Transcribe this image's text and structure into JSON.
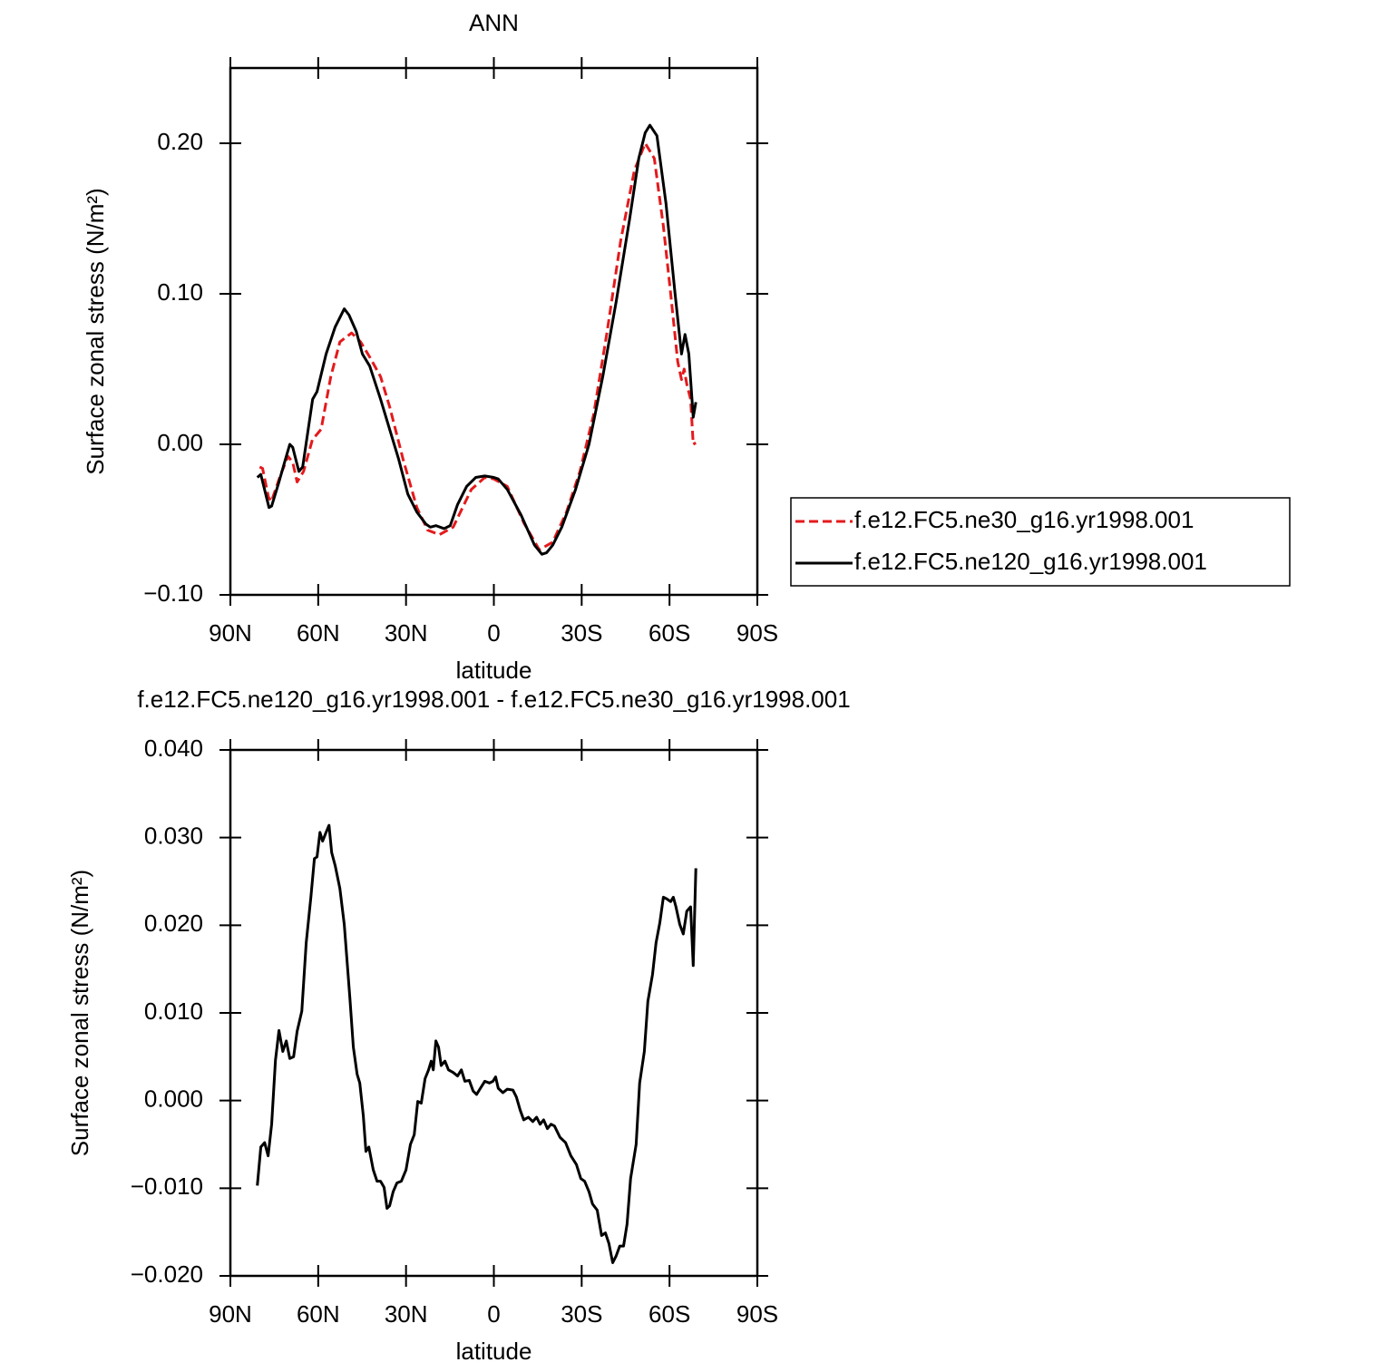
{
  "chart_data": [
    {
      "type": "line",
      "title": "ANN",
      "xlabel": "latitude",
      "ylabel": "Surface zonal stress (N/m²)",
      "xlim": [
        90,
        -90
      ],
      "xticks": [
        {
          "value": 90,
          "label": "90N"
        },
        {
          "value": 60,
          "label": "60N"
        },
        {
          "value": 30,
          "label": "30N"
        },
        0,
        {
          "value": -30,
          "label": "30S"
        },
        {
          "value": -60,
          "label": "60S"
        },
        {
          "value": -90,
          "label": "90S"
        }
      ],
      "ylim": [
        -0.1,
        0.25
      ],
      "yticks": [
        {
          "value": -0.1,
          "label": "−0.10"
        },
        {
          "value": 0.0,
          "label": "0.00"
        },
        {
          "value": 0.1,
          "label": "0.10"
        },
        {
          "value": 0.2,
          "label": "0.20"
        }
      ],
      "legend": "right",
      "series": [
        {
          "name": "f.e12.FC5.ne30_g16.yr1998.001",
          "color": "#e41a1c",
          "line_style": "dashed",
          "x": [
            80,
            79,
            77,
            76,
            72.8,
            70.3,
            68.7,
            67.2,
            65,
            62,
            59,
            55.7,
            52.6,
            48.6,
            45.5,
            42.4,
            38.7,
            35.6,
            31,
            26.3,
            22.6,
            18.6,
            13.9,
            7.7,
            3.1,
            0,
            -4.6,
            -10.2,
            -15.5,
            -20.1,
            -24.8,
            -29.4,
            -34.1,
            -38.7,
            -43.3,
            -48,
            -51.7,
            -54.8,
            -57.9,
            -60.4,
            -62.8,
            -64.1,
            -65,
            -65.9,
            -67.2,
            -68.1,
            -69
          ],
          "values": [
            -0.015,
            -0.016,
            -0.035,
            -0.038,
            -0.02,
            -0.008,
            -0.012,
            -0.025,
            -0.018,
            0.003,
            0.01,
            0.045,
            0.068,
            0.074,
            0.068,
            0.058,
            0.045,
            0.025,
            -0.01,
            -0.042,
            -0.057,
            -0.06,
            -0.055,
            -0.03,
            -0.022,
            -0.023,
            -0.028,
            -0.052,
            -0.07,
            -0.065,
            -0.045,
            -0.018,
            0.02,
            0.075,
            0.135,
            0.182,
            0.2,
            0.19,
            0.145,
            0.1,
            0.055,
            0.043,
            0.05,
            0.04,
            0.03,
            0.0,
            0.001
          ]
        },
        {
          "name": "f.e12.FC5.ne120_g16.yr1998.001",
          "color": "#000000",
          "line_style": "solid",
          "x": [
            80.8,
            79.6,
            76.8,
            75.9,
            73.4,
            71.5,
            69.7,
            68.7,
            66.6,
            65.3,
            61.9,
            60.4,
            57.3,
            54.2,
            51.1,
            49.5,
            47,
            44.9,
            42.4,
            38.7,
            35.6,
            32.5,
            29.4,
            26.3,
            23.2,
            21.7,
            19.8,
            17,
            14.9,
            12.4,
            9.3,
            6.2,
            3.1,
            0,
            -1.5,
            -4.6,
            -9.3,
            -13.9,
            -16.4,
            -18,
            -20.1,
            -23.2,
            -27.9,
            -32.5,
            -37.2,
            -41.8,
            -46.4,
            -49.5,
            -51.7,
            -53.3,
            -55.7,
            -58.8,
            -61.9,
            -64.1,
            -65.3,
            -66.6,
            -68.1,
            -69
          ],
          "values": [
            -0.022,
            -0.02,
            -0.042,
            -0.041,
            -0.025,
            -0.012,
            0.0,
            -0.002,
            -0.018,
            -0.015,
            0.03,
            0.035,
            0.06,
            0.078,
            0.09,
            0.086,
            0.075,
            0.06,
            0.052,
            0.03,
            0.01,
            -0.01,
            -0.033,
            -0.045,
            -0.053,
            -0.055,
            -0.054,
            -0.056,
            -0.054,
            -0.04,
            -0.028,
            -0.022,
            -0.021,
            -0.022,
            -0.023,
            -0.03,
            -0.047,
            -0.067,
            -0.073,
            -0.072,
            -0.067,
            -0.055,
            -0.03,
            0.0,
            0.045,
            0.095,
            0.15,
            0.19,
            0.207,
            0.212,
            0.205,
            0.16,
            0.1,
            0.06,
            0.073,
            0.06,
            0.018,
            0.028
          ]
        }
      ]
    },
    {
      "type": "line",
      "title": "f.e12.FC5.ne120_g16.yr1998.001 - f.e12.FC5.ne30_g16.yr1998.001",
      "xlabel": "latitude",
      "ylabel": "Surface zonal stress (N/m²)",
      "xlim": [
        90,
        -90
      ],
      "xticks": [
        {
          "value": 90,
          "label": "90N"
        },
        {
          "value": 60,
          "label": "60N"
        },
        {
          "value": 30,
          "label": "30N"
        },
        0,
        {
          "value": -30,
          "label": "30S"
        },
        {
          "value": -60,
          "label": "60S"
        },
        {
          "value": -90,
          "label": "90S"
        }
      ],
      "ylim": [
        -0.02,
        0.04
      ],
      "yticks": [
        {
          "value": -0.02,
          "label": "−0.020"
        },
        {
          "value": -0.01,
          "label": "−0.010"
        },
        {
          "value": 0.0,
          "label": "0.000"
        },
        {
          "value": 0.01,
          "label": "0.010"
        },
        {
          "value": 0.02,
          "label": "0.020"
        },
        {
          "value": 0.03,
          "label": "0.030"
        },
        {
          "value": 0.04,
          "label": "0.040"
        }
      ],
      "series": [
        {
          "color": "#000000",
          "line_style": "solid",
          "x": [
            80.8,
            79.6,
            78.3,
            77.1,
            75.9,
            74.6,
            73.4,
            72.1,
            70.9,
            69.7,
            68.4,
            67.2,
            65.6,
            64.1,
            62.5,
            61.3,
            60.4,
            59.4,
            58.5,
            57.3,
            56.3,
            55.4,
            54.2,
            52.6,
            51.1,
            49.2,
            48.0,
            46.7,
            45.8,
            44.6,
            43.7,
            42.7,
            41.2,
            39.9,
            38.7,
            37.5,
            36.5,
            35.6,
            34.4,
            33.1,
            31.6,
            30.0,
            28.5,
            27.2,
            26.0,
            24.8,
            23.5,
            22.3,
            21.4,
            20.7,
            19.8,
            18.9,
            18.0,
            16.7,
            15.5,
            13.9,
            12.4,
            11.1,
            9.9,
            8.4,
            7.1,
            5.9,
            4.6,
            3.1,
            1.5,
            0.3,
            -0.6,
            -1.5,
            -3.1,
            -4.6,
            -6.5,
            -7.7,
            -9.0,
            -10.2,
            -11.8,
            -13.3,
            -14.6,
            -15.8,
            -17.0,
            -18.3,
            -19.5,
            -20.7,
            -22.6,
            -24.5,
            -26.3,
            -28.2,
            -29.7,
            -31.0,
            -32.5,
            -33.7,
            -35.3,
            -36.8,
            -38.1,
            -39.3,
            -40.6,
            -41.8,
            -43.0,
            -44.3,
            -45.5,
            -46.7,
            -48.6,
            -49.8,
            -51.4,
            -52.6,
            -54.2,
            -55.4,
            -56.7,
            -57.9,
            -59.1,
            -60.4,
            -61.3,
            -62.2,
            -63.5,
            -64.7,
            -65.9,
            -67.2,
            -68.1,
            -69.0
          ],
          "values": [
            -0.0097,
            -0.0053,
            -0.0048,
            -0.0063,
            -0.0027,
            0.0046,
            0.008,
            0.0056,
            0.0068,
            0.0048,
            0.005,
            0.0079,
            0.0102,
            0.018,
            0.0232,
            0.0276,
            0.0278,
            0.0306,
            0.0296,
            0.0306,
            0.0314,
            0.0283,
            0.0268,
            0.0242,
            0.0201,
            0.0118,
            0.0061,
            0.003,
            0.002,
            -0.0017,
            -0.0058,
            -0.0053,
            -0.0079,
            -0.0092,
            -0.0092,
            -0.0099,
            -0.0123,
            -0.012,
            -0.0104,
            -0.0094,
            -0.0092,
            -0.0079,
            -0.005,
            -0.0039,
            -0.0001,
            -0.0003,
            0.0025,
            0.0035,
            0.0045,
            0.0035,
            0.0068,
            0.0061,
            0.004,
            0.0045,
            0.0035,
            0.0032,
            0.0028,
            0.0035,
            0.0022,
            0.0023,
            0.0011,
            0.0007,
            0.0014,
            0.0022,
            0.002,
            0.0022,
            0.0027,
            0.0014,
            0.0009,
            0.0013,
            0.0012,
            0.0004,
            -0.0011,
            -0.0022,
            -0.0019,
            -0.0024,
            -0.0019,
            -0.0027,
            -0.0022,
            -0.0032,
            -0.0027,
            -0.0029,
            -0.0042,
            -0.0048,
            -0.0063,
            -0.0073,
            -0.0089,
            -0.0092,
            -0.0104,
            -0.0118,
            -0.0125,
            -0.0154,
            -0.0151,
            -0.0163,
            -0.0185,
            -0.0177,
            -0.0166,
            -0.0166,
            -0.0141,
            -0.0089,
            -0.005,
            0.002,
            0.0056,
            0.0113,
            0.0144,
            0.018,
            0.0203,
            0.0232,
            0.023,
            0.0227,
            0.0232,
            0.0221,
            0.0201,
            0.019,
            0.0216,
            0.0221,
            0.0154,
            0.0265
          ]
        }
      ]
    }
  ]
}
